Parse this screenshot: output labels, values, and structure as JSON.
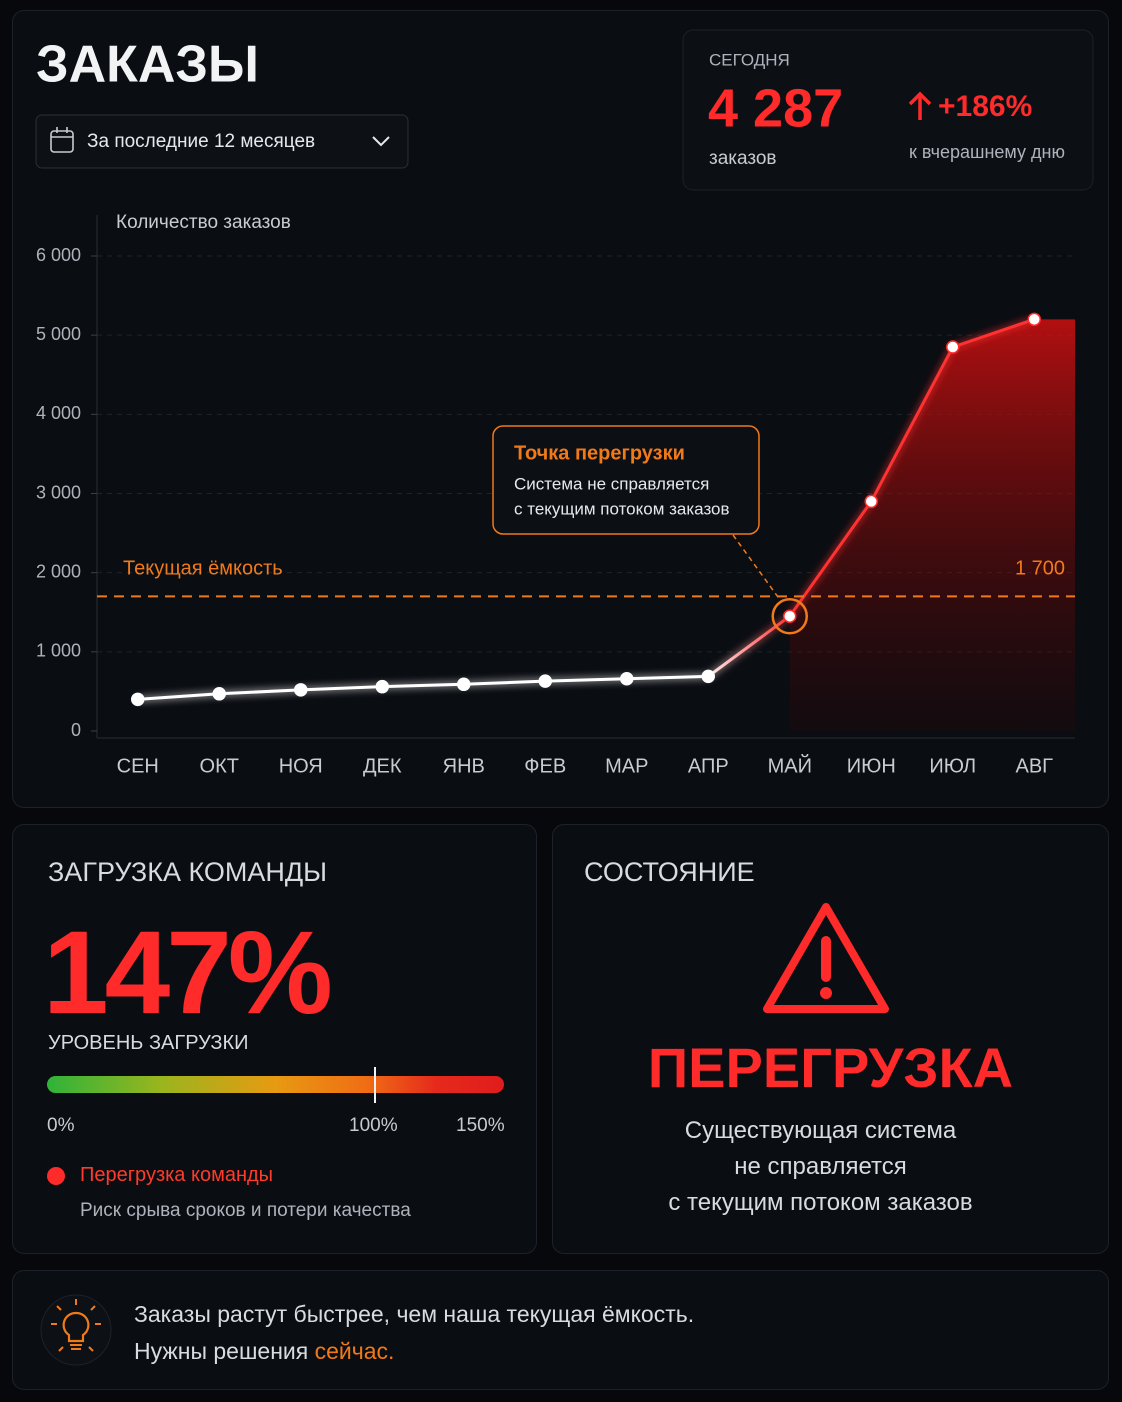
{
  "header": {
    "title": "ЗАКАЗЫ",
    "period": "За последние 12 месяцев"
  },
  "today": {
    "label": "СЕГОДНЯ",
    "value": "4 287",
    "unit": "заказов",
    "change": "+186%",
    "change_label": "к вчерашнему дню"
  },
  "chart_data": {
    "type": "line",
    "y_label": "Количество заказов",
    "categories": [
      "СЕН",
      "ОКТ",
      "НОЯ",
      "ДЕК",
      "ЯНВ",
      "ФЕВ",
      "МАР",
      "АПР",
      "МАЙ",
      "ИЮН",
      "ИЮЛ",
      "АВГ"
    ],
    "series": [
      {
        "name": "Заказы",
        "color": "#ff2a2a",
        "values": [
          400,
          470,
          520,
          560,
          590,
          630,
          660,
          690,
          1450,
          2900,
          4850,
          5200
        ]
      }
    ],
    "ylim": [
      0,
      6000
    ],
    "yticks": [
      0,
      {
        "value": 1000,
        "label": "1 000"
      },
      {
        "value": 2000,
        "label": "2 000"
      },
      {
        "value": 3000,
        "label": "3 000"
      },
      {
        "value": 4000,
        "label": "4 000"
      },
      {
        "value": 5000,
        "label": "5 000"
      },
      {
        "value": 6000,
        "label": "6 000"
      }
    ],
    "grid": true,
    "capacity": {
      "label": "Текущая ёмкость",
      "value": 1700,
      "value_label": "1 700",
      "color": "#f07a1a"
    },
    "annotation": {
      "title": "Точка перегрузки",
      "lines": [
        "Система не справляется",
        "с текущим потоком заказов"
      ]
    }
  },
  "team_load": {
    "title": "ЗАГРУЗКА КОМАНДЫ",
    "value": "147%",
    "label": "УРОВЕНЬ ЗАГРУЗКИ",
    "scale": [
      "0%",
      "100%",
      "150%"
    ],
    "status": "Перегрузка команды",
    "note": "Риск срыва сроков и потери качества"
  },
  "status": {
    "title": "СОСТОЯНИЕ",
    "state": "ПЕРЕГРУЗКА",
    "lines": [
      "Существующая система",
      "не справляется",
      "с текущим потоком заказов"
    ]
  },
  "footer": {
    "line1": "Заказы растут быстрее, чем наша текущая ёмкость.",
    "line2": "Нужны решения ",
    "highlight": "сейчас."
  }
}
